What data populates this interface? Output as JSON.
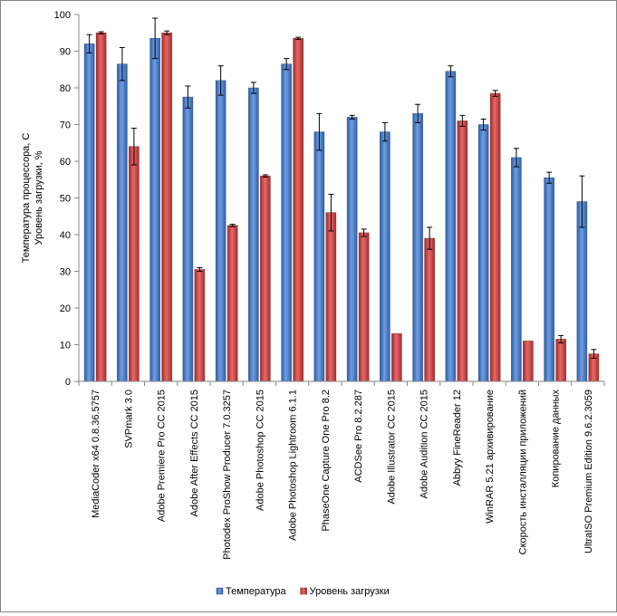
{
  "chart_data": {
    "type": "bar",
    "ylabel_lines": [
      "Температура процессора, С",
      "Уровень загрузки, %"
    ],
    "ylim": [
      0,
      100
    ],
    "yticks": [
      0,
      10,
      20,
      30,
      40,
      50,
      60,
      70,
      80,
      90,
      100
    ],
    "grid": false,
    "legend_position": "bottom",
    "categories": [
      "MediaCoder x64 0.8.36.5757",
      "SVPmark 3.0",
      "Adobe Premiere Pro CC 2015",
      "Adobe After Effects CC 2015",
      "Photodex ProShow Producer 7.0.3257",
      "Adobe Photoshop CC 2015",
      "Adobe Photoshop Lightroom 6.1.1",
      "PhaseOne Capture One Pro 8.2",
      "ACDSee Pro 8.2.287",
      "Adobe Illustrator CC 2015",
      "Adobe Audition CC 2015",
      "Abbyy FineReader 12",
      "WinRAR 5.21 архивирование",
      "Скорость инсталляции приложений",
      "Копирование данных",
      "UltraISO Premium Edition 9.6.2.3059"
    ],
    "series": [
      {
        "name": "Температура",
        "color": "#4a7cc4",
        "values": [
          92,
          86.5,
          93.5,
          77.5,
          82,
          80,
          86.5,
          68,
          72,
          68,
          73,
          84.5,
          70,
          61,
          55.5,
          49
        ],
        "errors": [
          2.5,
          4.5,
          5.5,
          3,
          4,
          1.5,
          1.5,
          5,
          0.5,
          2.5,
          2.5,
          1.5,
          1.5,
          2.5,
          1.5,
          7
        ]
      },
      {
        "name": "Уровень загрузки",
        "color": "#c93a3a",
        "values": [
          95,
          64,
          95,
          30.5,
          42.5,
          56,
          93.5,
          46,
          40.5,
          13,
          39,
          71,
          78.5,
          11,
          11.5,
          7.5
        ],
        "errors": [
          0.3,
          5,
          0.5,
          0.5,
          0.3,
          0.3,
          0.3,
          5,
          1,
          0,
          3,
          1.5,
          0.8,
          0,
          1,
          1.2
        ]
      }
    ]
  }
}
